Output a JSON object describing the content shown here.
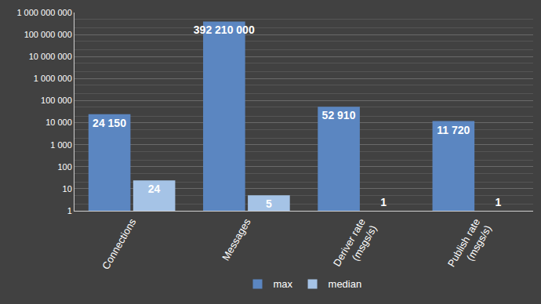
{
  "chart_data": {
    "type": "bar",
    "categories": [
      "Connections",
      "Messages",
      "Deriver rate (msgs/s)",
      "Publish rate (msgs/s)"
    ],
    "series": [
      {
        "name": "max",
        "color": "#5b86c1",
        "values": [
          24150,
          392210000,
          52910,
          11720
        ],
        "value_labels": [
          "24 150",
          "392 210 000",
          "52 910",
          "11 720"
        ]
      },
      {
        "name": "median",
        "color": "#a5c3e6",
        "values": [
          24,
          5,
          1,
          1
        ],
        "value_labels": [
          "24",
          "5",
          "1",
          "1"
        ]
      }
    ],
    "log": "y",
    "ylim": [
      1,
      1000000000
    ],
    "yticks": [
      1,
      10,
      100,
      {
        "value": 1000,
        "label": "1 000"
      },
      {
        "value": 10000,
        "label": "10 000"
      },
      {
        "value": 100000,
        "label": "100 000"
      },
      {
        "value": 1000000,
        "label": "1 000 000"
      },
      {
        "value": 10000000,
        "label": "10 000 000"
      },
      {
        "value": 100000000,
        "label": "100 000 000"
      },
      {
        "value": 1000000000,
        "label": "1 000 000 000"
      }
    ],
    "grid": true,
    "legend": "bottom",
    "data_labels": true
  }
}
